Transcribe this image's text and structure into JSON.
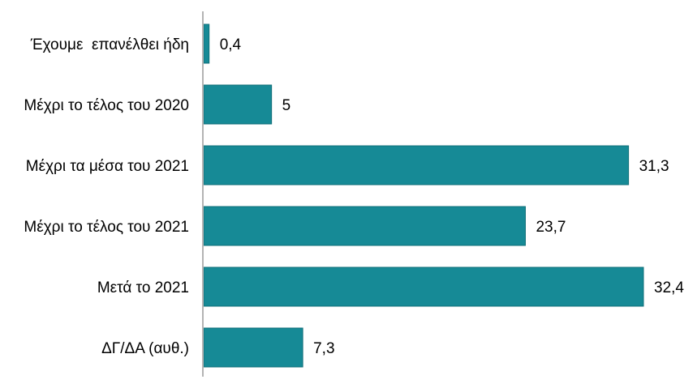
{
  "chart_data": {
    "type": "bar",
    "orientation": "horizontal",
    "categories": [
      "Έχουμε  επανέλθει ήδη",
      "Μέχρι το τέλος του 2020",
      "Μέχρι τα μέσα του 2021",
      "Μέχρι το τέλος του 2021",
      "Μετά το 2021",
      "ΔΓ/ΔΑ (αυθ.)"
    ],
    "values": [
      0.4,
      5,
      31.3,
      23.7,
      32.4,
      7.3
    ],
    "value_labels": [
      "0,4",
      "5",
      "31,3",
      "23,7",
      "32,4",
      "7,3"
    ],
    "title": "",
    "xlabel": "",
    "ylabel": "",
    "xlim": [
      0,
      32.4
    ],
    "grid": false,
    "legend": "none",
    "bar_color": "#168A96"
  }
}
